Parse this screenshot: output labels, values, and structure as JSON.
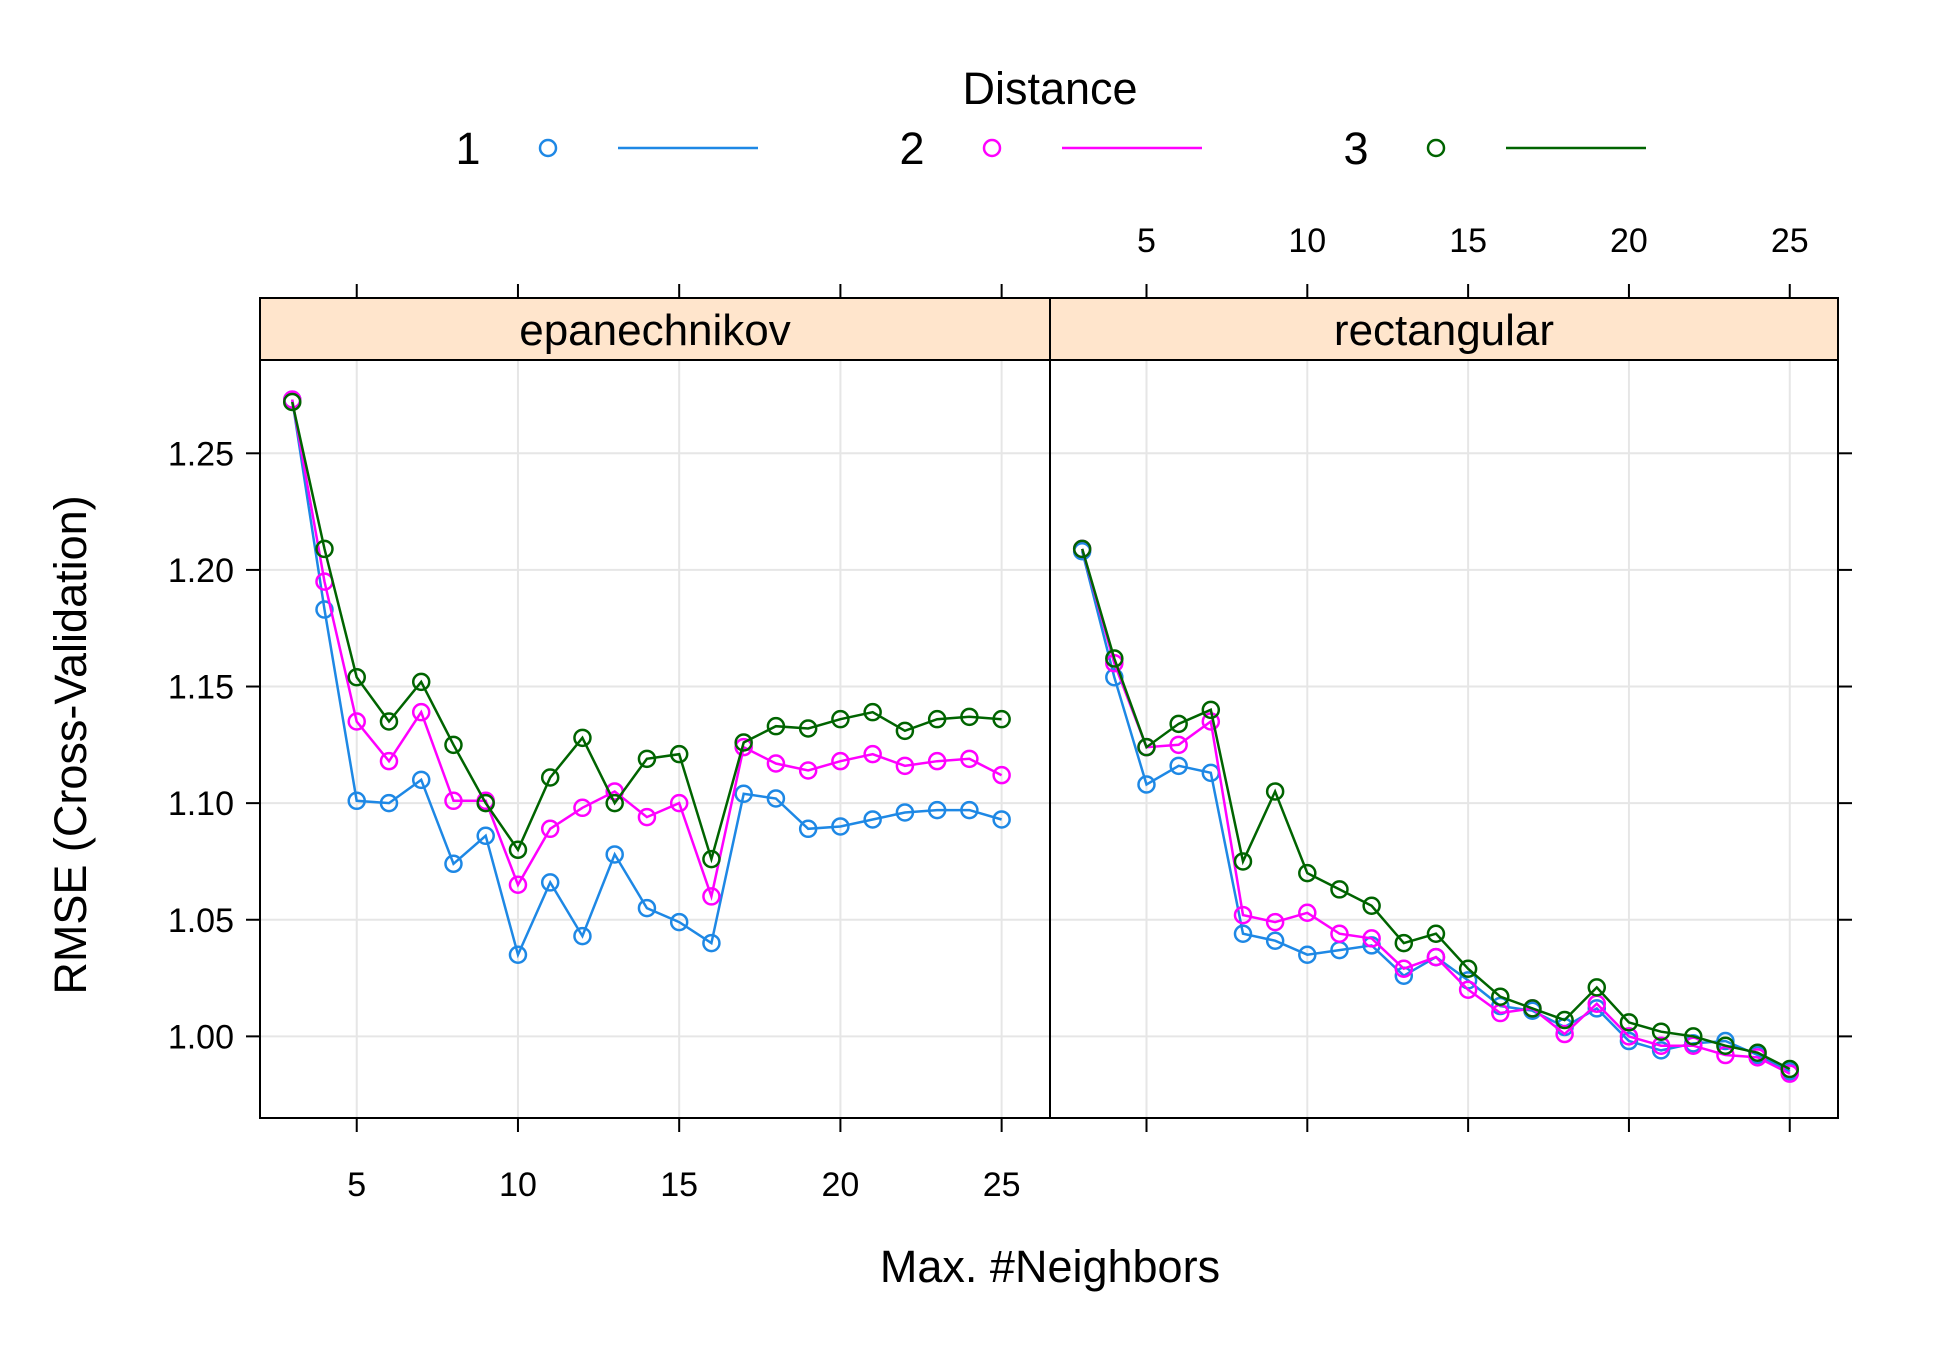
{
  "chart_data": {
    "type": "line",
    "xlabel": "Max. #Neighbors",
    "ylabel": "RMSE (Cross-Validation)",
    "legend": {
      "title": "Distance",
      "placement": "top",
      "entries": [
        {
          "label": "1",
          "color": "#1E88E5"
        },
        {
          "label": "2",
          "color": "#FF00FF"
        },
        {
          "label": "3",
          "color": "#006400"
        }
      ]
    },
    "xlim": [
      2,
      26.5
    ],
    "ylim": [
      0.965,
      1.29
    ],
    "x_ticks": [
      5,
      10,
      15,
      20,
      25
    ],
    "x_tick_labels": [
      "5",
      "10",
      "15",
      "20",
      "25"
    ],
    "y_ticks": [
      1.0,
      1.05,
      1.1,
      1.15,
      1.2,
      1.25
    ],
    "y_tick_labels": [
      "1.00",
      "1.05",
      "1.10",
      "1.15",
      "1.20",
      "1.25"
    ],
    "grid": true,
    "panels": [
      {
        "strip": "epanechnikov",
        "x": [
          3,
          4,
          5,
          6,
          7,
          8,
          9,
          10,
          11,
          12,
          13,
          14,
          15,
          16,
          17,
          18,
          19,
          20,
          21,
          22,
          23,
          24,
          25
        ],
        "series": [
          {
            "name": "1",
            "color": "#1E88E5",
            "values": [
              1.273,
              1.183,
              1.101,
              1.1,
              1.11,
              1.074,
              1.086,
              1.035,
              1.066,
              1.043,
              1.078,
              1.055,
              1.049,
              1.04,
              1.104,
              1.102,
              1.089,
              1.09,
              1.093,
              1.096,
              1.097,
              1.097,
              1.093
            ]
          },
          {
            "name": "2",
            "color": "#FF00FF",
            "values": [
              1.273,
              1.195,
              1.135,
              1.118,
              1.139,
              1.101,
              1.101,
              1.065,
              1.089,
              1.098,
              1.105,
              1.094,
              1.1,
              1.06,
              1.124,
              1.117,
              1.114,
              1.118,
              1.121,
              1.116,
              1.118,
              1.119,
              1.112
            ]
          },
          {
            "name": "3",
            "color": "#006400",
            "values": [
              1.272,
              1.209,
              1.154,
              1.135,
              1.152,
              1.125,
              1.1,
              1.08,
              1.111,
              1.128,
              1.1,
              1.119,
              1.121,
              1.076,
              1.126,
              1.133,
              1.132,
              1.136,
              1.139,
              1.131,
              1.136,
              1.137,
              1.136
            ]
          }
        ]
      },
      {
        "strip": "rectangular",
        "x": [
          3,
          4,
          5,
          6,
          7,
          8,
          9,
          10,
          11,
          12,
          13,
          14,
          15,
          16,
          17,
          18,
          19,
          20,
          21,
          22,
          23,
          24,
          25
        ],
        "series": [
          {
            "name": "1",
            "color": "#1E88E5",
            "values": [
              1.208,
              1.154,
              1.108,
              1.116,
              1.113,
              1.044,
              1.041,
              1.035,
              1.037,
              1.039,
              1.026,
              1.034,
              1.024,
              1.013,
              1.011,
              1.004,
              1.012,
              0.998,
              0.994,
              0.997,
              0.998,
              0.992,
              0.985
            ]
          },
          {
            "name": "2",
            "color": "#FF00FF",
            "values": [
              1.209,
              1.16,
              1.124,
              1.125,
              1.135,
              1.052,
              1.049,
              1.053,
              1.044,
              1.042,
              1.029,
              1.034,
              1.02,
              1.01,
              1.012,
              1.001,
              1.014,
              1.0,
              0.996,
              0.996,
              0.992,
              0.991,
              0.984
            ]
          },
          {
            "name": "3",
            "color": "#006400",
            "values": [
              1.209,
              1.162,
              1.124,
              1.134,
              1.14,
              1.075,
              1.105,
              1.07,
              1.063,
              1.056,
              1.04,
              1.044,
              1.029,
              1.017,
              1.012,
              1.007,
              1.021,
              1.006,
              1.002,
              1.0,
              0.996,
              0.993,
              0.986
            ]
          }
        ]
      }
    ]
  }
}
